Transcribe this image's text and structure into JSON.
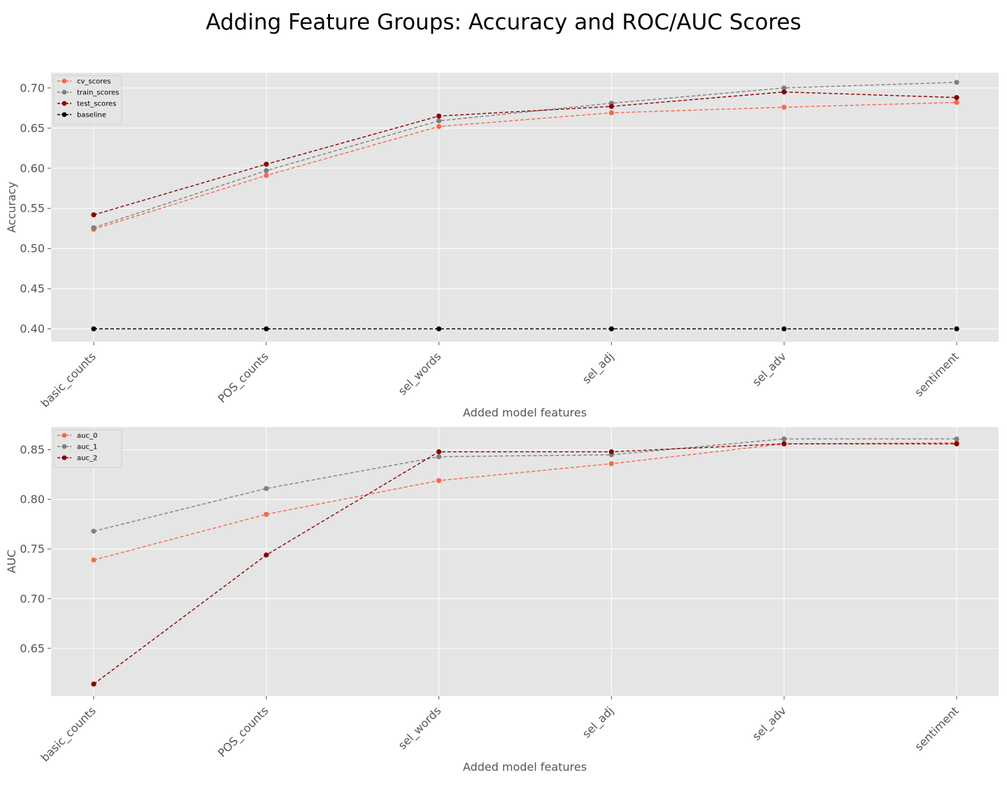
{
  "title": "Adding Feature Groups: Accuracy and ROC/AUC Scores",
  "colors": {
    "background": "#e5e5e5",
    "grid": "#ffffff",
    "tick": "#555555"
  },
  "chart_data": [
    {
      "type": "line",
      "categories": [
        "basic_counts",
        "POS_counts",
        "sel_words",
        "sel_adj",
        "sel_adv",
        "sentiment"
      ],
      "xlabel": "Added model features",
      "ylabel": "Accuracy",
      "ylim": [
        0.384,
        0.719
      ],
      "yticks": [
        "0.40",
        "0.45",
        "0.50",
        "0.55",
        "0.60",
        "0.65",
        "0.70"
      ],
      "grid": true,
      "legend": "upper left",
      "series": [
        {
          "name": "cv_scores",
          "color": "#f9664a",
          "values": [
            0.524,
            0.591,
            0.652,
            0.669,
            0.676,
            0.682
          ]
        },
        {
          "name": "train_scores",
          "color": "#808080",
          "values": [
            0.526,
            0.597,
            0.659,
            0.681,
            0.7,
            0.707
          ]
        },
        {
          "name": "test_scores",
          "color": "#8b0000",
          "values": [
            0.542,
            0.605,
            0.665,
            0.677,
            0.695,
            0.688
          ]
        },
        {
          "name": "baseline",
          "color": "#000000",
          "values": [
            0.4,
            0.4,
            0.4,
            0.4,
            0.4,
            0.4
          ]
        }
      ]
    },
    {
      "type": "line",
      "categories": [
        "basic_counts",
        "POS_counts",
        "sel_words",
        "sel_adj",
        "sel_adv",
        "sentiment"
      ],
      "xlabel": "Added model features",
      "ylabel": "AUC",
      "ylim": [
        0.602,
        0.873
      ],
      "yticks": [
        "0.65",
        "0.70",
        "0.75",
        "0.80",
        "0.85"
      ],
      "grid": true,
      "legend": "upper left",
      "series": [
        {
          "name": "auc_0",
          "color": "#f9664a",
          "values": [
            0.739,
            0.785,
            0.819,
            0.836,
            0.856,
            0.857
          ]
        },
        {
          "name": "auc_1",
          "color": "#808080",
          "values": [
            0.768,
            0.811,
            0.843,
            0.845,
            0.861,
            0.861
          ]
        },
        {
          "name": "auc_2",
          "color": "#8b0000",
          "values": [
            0.614,
            0.744,
            0.848,
            0.848,
            0.856,
            0.856
          ]
        }
      ]
    }
  ]
}
